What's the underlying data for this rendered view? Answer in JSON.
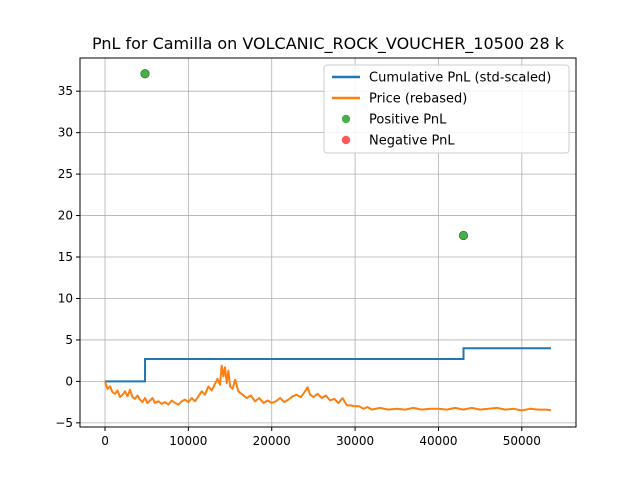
{
  "chart_data": {
    "type": "line",
    "title": "PnL for Camilla on VOLCANIC_ROCK_VOUCHER_10500 28 k",
    "xlabel": "",
    "ylabel": "",
    "xlim": [
      -3000,
      56500
    ],
    "ylim": [
      -5.5,
      39
    ],
    "xticks": [
      0,
      10000,
      20000,
      30000,
      40000,
      50000
    ],
    "yticks": [
      -5,
      0,
      5,
      10,
      15,
      20,
      25,
      30,
      35
    ],
    "grid": true,
    "legend_position": "top-right",
    "colors": {
      "cumulative": "#1f77b4",
      "price": "#ff7f0e",
      "positive": "#2ca02c",
      "negative": "#ff3b3b"
    },
    "series": [
      {
        "name": "Cumulative PnL (std-scaled)",
        "kind": "step",
        "x": [
          0,
          4800,
          4800,
          43000,
          43000,
          53500
        ],
        "y": [
          0,
          0,
          2.7,
          2.7,
          4.0,
          4.0
        ]
      },
      {
        "name": "Price (rebased)",
        "kind": "line",
        "x": [
          0,
          300,
          600,
          900,
          1200,
          1500,
          1800,
          2100,
          2400,
          2700,
          3000,
          3300,
          3600,
          3900,
          4200,
          4500,
          4800,
          5100,
          5400,
          5700,
          6000,
          6400,
          6800,
          7200,
          7600,
          8000,
          8400,
          8800,
          9200,
          9600,
          10000,
          10400,
          10800,
          11200,
          11600,
          12000,
          12400,
          12800,
          13200,
          13500,
          13800,
          14000,
          14200,
          14400,
          14600,
          14800,
          15000,
          15300,
          15600,
          16000,
          16500,
          17000,
          17500,
          18000,
          18500,
          19000,
          19500,
          20000,
          20500,
          21000,
          21500,
          22000,
          22500,
          23000,
          23500,
          24000,
          24300,
          24600,
          25000,
          25500,
          26000,
          26500,
          27000,
          27500,
          28000,
          28500,
          29000,
          29500,
          30000,
          30500,
          31000,
          31500,
          32000,
          33000,
          34000,
          35000,
          36000,
          37000,
          38000,
          39000,
          40000,
          41000,
          42000,
          43000,
          44000,
          45000,
          46000,
          47000,
          48000,
          49000,
          50000,
          51000,
          52000,
          53000,
          53500
        ],
        "y": [
          0,
          -0.9,
          -0.6,
          -1.3,
          -1.5,
          -1.1,
          -1.9,
          -1.6,
          -1.2,
          -1.8,
          -1.0,
          -1.9,
          -2.1,
          -1.7,
          -2.2,
          -2.5,
          -2.0,
          -2.6,
          -2.3,
          -2.0,
          -2.6,
          -2.4,
          -2.7,
          -2.5,
          -2.8,
          -2.3,
          -2.6,
          -2.8,
          -2.4,
          -2.2,
          -2.5,
          -2.0,
          -2.4,
          -1.8,
          -1.2,
          -1.6,
          -0.6,
          -1.1,
          -0.3,
          0.3,
          -0.4,
          1.9,
          0.6,
          1.7,
          -0.2,
          1.3,
          -0.6,
          -0.9,
          0.2,
          -1.2,
          -1.6,
          -2.0,
          -1.7,
          -2.4,
          -2.0,
          -2.6,
          -2.3,
          -2.6,
          -2.4,
          -2.0,
          -2.5,
          -2.2,
          -1.8,
          -1.6,
          -1.9,
          -1.2,
          -0.7,
          -1.6,
          -1.9,
          -1.5,
          -2.0,
          -1.7,
          -2.3,
          -2.1,
          -2.6,
          -2.0,
          -2.9,
          -2.9,
          -3.0,
          -3.0,
          -3.3,
          -3.1,
          -3.4,
          -3.2,
          -3.4,
          -3.3,
          -3.4,
          -3.2,
          -3.4,
          -3.3,
          -3.3,
          -3.4,
          -3.2,
          -3.4,
          -3.2,
          -3.4,
          -3.3,
          -3.2,
          -3.4,
          -3.3,
          -3.5,
          -3.3,
          -3.4,
          -3.4,
          -3.5
        ]
      },
      {
        "name": "Positive PnL",
        "kind": "scatter",
        "x": [
          4800,
          43000
        ],
        "y": [
          37.1,
          17.6
        ]
      },
      {
        "name": "Negative PnL",
        "kind": "scatter",
        "x": [],
        "y": []
      }
    ]
  }
}
